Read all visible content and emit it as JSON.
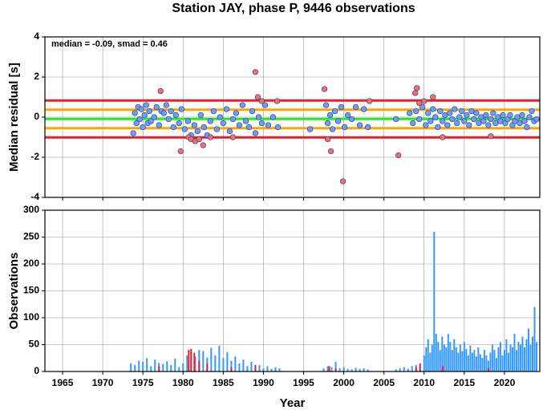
{
  "chart_data": [
    {
      "type": "scatter",
      "title": "Station JAY, phase P, 9446 observations",
      "annotation": "median = -0.09, smad = 0.46",
      "ylabel": "Median residual [s]",
      "xlim": [
        1962.8,
        2024.4
      ],
      "xticks": [
        1965,
        1970,
        1975,
        1980,
        1985,
        1990,
        1995,
        2000,
        2005,
        2010,
        2015,
        2020
      ],
      "ylim": [
        -4,
        4
      ],
      "yticks": [
        -4,
        -2,
        0,
        2,
        4
      ],
      "grid": true,
      "hlines": [
        {
          "value": 0.83,
          "color": "#e8202a"
        },
        {
          "value": 0.37,
          "color": "#ffa500"
        },
        {
          "value": -0.09,
          "color": "#22ee22"
        },
        {
          "value": -0.55,
          "color": "#ffa500"
        },
        {
          "value": -1.01,
          "color": "#e8202a"
        }
      ],
      "series": [
        {
          "color": "#6f9ff5",
          "x": [
            1973.8,
            1974.0,
            1974.2,
            1974.4,
            1974.6,
            1974.8,
            1975.0,
            1975.2,
            1975.4,
            1975.6,
            1975.8,
            1976.0,
            1976.4,
            1976.7,
            1977.0,
            1977.3,
            1977.6,
            1977.9,
            1978.2,
            1978.5,
            1978.8,
            1979.1,
            1979.5,
            1979.8,
            1980.2,
            1980.6,
            1981.0,
            1981.4,
            1981.8,
            1982.2,
            1982.6,
            1983.0,
            1983.4,
            1983.8,
            1984.2,
            1984.6,
            1985.0,
            1985.4,
            1985.8,
            1986.2,
            1986.6,
            1987.0,
            1987.4,
            1987.8,
            1988.2,
            1988.6,
            1989.0,
            1989.4,
            1989.8,
            1990.2,
            1990.6,
            1991.2,
            1991.8,
            1995.8,
            1997.8,
            1998.0,
            1998.3,
            1998.6,
            1998.9,
            1999.3,
            1999.7,
            2000.1,
            2000.5,
            2001.0,
            2001.5,
            2002.0,
            2002.5,
            2003.0,
            2006.5,
            2008.2,
            2008.6,
            2009.0,
            2009.4,
            2009.8,
            2010.2,
            2010.5,
            2010.8,
            2011.1,
            2011.4,
            2011.7,
            2012.0,
            2012.3,
            2012.6,
            2012.9,
            2013.2,
            2013.5,
            2013.8,
            2014.1,
            2014.4,
            2014.7,
            2015.0,
            2015.3,
            2015.6,
            2015.9,
            2016.2,
            2016.5,
            2016.8,
            2017.1,
            2017.4,
            2017.7,
            2018.0,
            2018.3,
            2018.6,
            2018.9,
            2019.2,
            2019.5,
            2019.8,
            2020.1,
            2020.4,
            2020.7,
            2021.0,
            2021.3,
            2021.6,
            2021.9,
            2022.2,
            2022.5,
            2022.8,
            2023.1,
            2023.4,
            2023.7,
            2024.0
          ],
          "values": [
            -0.8,
            0.2,
            -0.3,
            0.5,
            -0.1,
            0.4,
            -0.5,
            0.1,
            0.6,
            -0.3,
            0.3,
            -0.2,
            0.0,
            0.5,
            -0.4,
            0.3,
            0.2,
            0.6,
            -0.1,
            0.3,
            -0.5,
            0.1,
            -0.3,
            0.4,
            -0.6,
            -0.2,
            -0.9,
            -0.4,
            -0.7,
            0.1,
            -0.5,
            -0.9,
            -0.2,
            0.3,
            -0.6,
            0.0,
            -0.3,
            0.4,
            -0.7,
            -0.1,
            0.2,
            -0.4,
            0.6,
            -0.2,
            -0.5,
            0.3,
            -0.8,
            0.0,
            -0.3,
            0.6,
            -0.4,
            0.0,
            -0.5,
            -0.6,
            0.6,
            -0.3,
            0.1,
            -0.6,
            0.3,
            -0.2,
            0.5,
            -0.5,
            0.1,
            -0.1,
            0.5,
            -0.4,
            0.4,
            -0.5,
            -0.1,
            0.2,
            -0.3,
            0.3,
            -0.1,
            0.5,
            -0.4,
            0.2,
            -0.2,
            0.4,
            0.0,
            -0.5,
            0.3,
            -0.2,
            0.1,
            -0.4,
            0.2,
            -0.1,
            0.4,
            -0.3,
            0.0,
            0.3,
            -0.2,
            0.1,
            -0.4,
            0.3,
            -0.1,
            0.2,
            -0.3,
            0.0,
            -0.2,
            0.1,
            -0.4,
            -0.1,
            0.2,
            -0.3,
            0.0,
            -0.2,
            0.1,
            -0.3,
            -0.1,
            0.1,
            -0.4,
            -0.2,
            0.0,
            -0.3,
            0.1,
            -0.2,
            -0.5,
            0.0,
            0.3,
            -0.2,
            -0.1
          ]
        },
        {
          "color": "#f76f62",
          "x": [
            1977.2,
            1979.7,
            1980.7,
            1981.0,
            1981.5,
            1982.0,
            1982.5,
            1983.4,
            1986.2,
            1989.0,
            1989.3,
            1989.8,
            1991.7,
            1997.6,
            1998.0,
            1998.4,
            1999.9,
            2003.2,
            2006.8,
            2008.9,
            2009.1,
            2009.4,
            2010.0,
            2011.1,
            2012.3,
            2018.3
          ],
          "values": [
            1.3,
            -1.7,
            -1.0,
            -1.1,
            -1.2,
            -1.1,
            -1.4,
            -1.0,
            -1.0,
            2.25,
            1.0,
            0.8,
            0.8,
            1.4,
            -1.1,
            -1.7,
            -3.2,
            0.8,
            -1.9,
            1.2,
            1.45,
            0.7,
            0.8,
            1.0,
            -1.0,
            -0.95
          ]
        }
      ]
    },
    {
      "type": "bar",
      "ylabel": "Observations",
      "xlabel": "Year",
      "xlim": [
        1962.8,
        2024.4
      ],
      "xticks": [
        1965,
        1970,
        1975,
        1980,
        1985,
        1990,
        1995,
        2000,
        2005,
        2010,
        2015,
        2020
      ],
      "ylim": [
        0,
        300
      ],
      "yticks": [
        0,
        50,
        100,
        150,
        200,
        250,
        300
      ],
      "grid": true,
      "series": [
        {
          "color": "#3399ff",
          "x": [
            1973.5,
            1974.0,
            1974.5,
            1975.0,
            1975.5,
            1976.0,
            1976.5,
            1977.0,
            1977.5,
            1978.0,
            1978.5,
            1979.0,
            1979.5,
            1980.0,
            1980.5,
            1981.0,
            1981.5,
            1982.0,
            1982.5,
            1983.0,
            1983.5,
            1984.0,
            1984.5,
            1985.0,
            1985.5,
            1986.0,
            1986.5,
            1987.0,
            1987.5,
            1988.0,
            1988.5,
            1989.0,
            1989.5,
            1990.0,
            1990.5,
            1991.0,
            1991.5,
            1992.0,
            1997.5,
            1998.0,
            1998.5,
            1999.0,
            1999.5,
            2000.0,
            2000.5,
            2001.0,
            2001.5,
            2002.0,
            2002.5,
            2003.0,
            2006.5,
            2007.0,
            2007.5,
            2008.0,
            2008.5,
            2009.0,
            2009.5,
            2010.0,
            2010.25,
            2010.5,
            2010.75,
            2011.0,
            2011.25,
            2011.5,
            2011.75,
            2012.0,
            2012.25,
            2012.5,
            2012.75,
            2013.0,
            2013.25,
            2013.5,
            2013.75,
            2014.0,
            2014.25,
            2014.5,
            2014.75,
            2015.0,
            2015.25,
            2015.5,
            2015.75,
            2016.0,
            2016.25,
            2016.5,
            2016.75,
            2017.0,
            2017.25,
            2017.5,
            2017.75,
            2018.0,
            2018.25,
            2018.5,
            2018.75,
            2019.0,
            2019.25,
            2019.5,
            2019.75,
            2020.0,
            2020.25,
            2020.5,
            2020.75,
            2021.0,
            2021.25,
            2021.5,
            2021.75,
            2022.0,
            2022.25,
            2022.5,
            2022.75,
            2023.0,
            2023.25,
            2023.5,
            2023.75,
            2024.0
          ],
          "values": [
            15,
            12,
            20,
            18,
            25,
            10,
            22,
            16,
            14,
            19,
            12,
            24,
            8,
            15,
            30,
            35,
            28,
            40,
            38,
            26,
            44,
            30,
            48,
            25,
            36,
            20,
            28,
            15,
            22,
            10,
            18,
            8,
            12,
            6,
            10,
            5,
            8,
            6,
            6,
            10,
            8,
            18,
            6,
            8,
            5,
            4,
            7,
            5,
            6,
            4,
            4,
            6,
            8,
            5,
            10,
            12,
            8,
            30,
            45,
            60,
            35,
            50,
            260,
            70,
            55,
            40,
            65,
            50,
            45,
            70,
            55,
            40,
            60,
            45,
            35,
            50,
            38,
            55,
            42,
            30,
            48,
            35,
            40,
            28,
            45,
            32,
            25,
            40,
            30,
            20,
            35,
            50,
            40,
            25,
            45,
            55,
            30,
            40,
            60,
            35,
            50,
            45,
            70,
            40,
            55,
            50,
            65,
            45,
            60,
            80,
            50,
            65,
            120,
            55
          ]
        },
        {
          "color": "#e8202a",
          "x": [
            1977.0,
            1980.7,
            1981.0,
            1981.4,
            1982.0,
            1983.0,
            1986.0,
            1989.0,
            1998.2,
            1999.0,
            2009.0,
            2009.5,
            2012.3,
            2018.0
          ],
          "values": [
            10,
            40,
            42,
            35,
            20,
            15,
            8,
            12,
            10,
            6,
            8,
            15,
            10,
            6
          ]
        }
      ]
    }
  ]
}
